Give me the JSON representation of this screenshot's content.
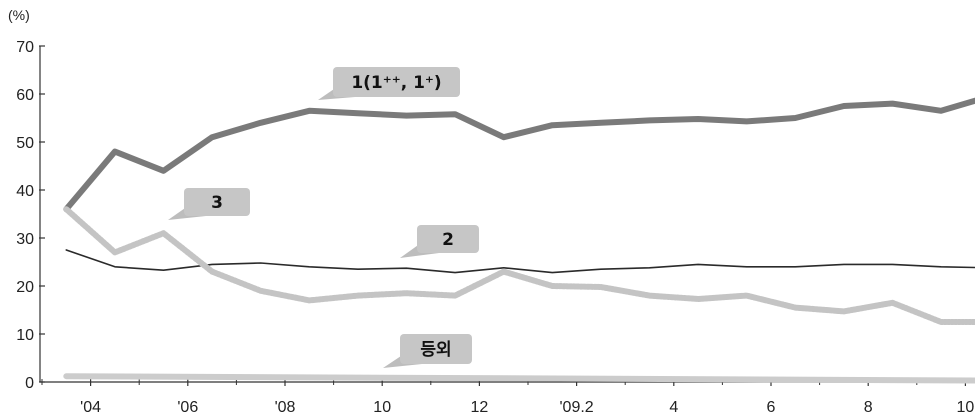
{
  "chart_data": {
    "type": "line",
    "unit_label": "(%)",
    "ylim": [
      0,
      70
    ],
    "yticks": [
      0,
      10,
      20,
      30,
      40,
      50,
      60,
      70
    ],
    "xlim": [
      0,
      26
    ],
    "xticks": [
      {
        "x": 1,
        "label": "'04"
      },
      {
        "x": 3,
        "label": "'06"
      },
      {
        "x": 5,
        "label": "'08"
      },
      {
        "x": 7,
        "label": "10"
      },
      {
        "x": 9,
        "label": "12"
      },
      {
        "x": 11,
        "label": "'09.2"
      },
      {
        "x": 13,
        "label": "4"
      },
      {
        "x": 15,
        "label": "6"
      },
      {
        "x": 17,
        "label": "8"
      },
      {
        "x": 19,
        "label": "10"
      }
    ],
    "grid": false,
    "series": [
      {
        "name": "1(1⁺⁺, 1⁺)",
        "color": "#7a7a7a",
        "style": "thick",
        "x": [
          0.5,
          1.5,
          2.5,
          3.5,
          4.5,
          5.5,
          6.5,
          7.5,
          8.5,
          9.5,
          10.5,
          11.5,
          12.5,
          13.5,
          14.5,
          15.5,
          16.5,
          17.5,
          18.5,
          19.5
        ],
        "values": [
          36,
          48,
          44,
          51,
          54,
          56.5,
          56,
          55.5,
          55.8,
          51,
          53.5,
          54,
          54.5,
          54.8,
          54.3,
          55,
          57.5,
          58,
          56.5,
          59.5
        ]
      },
      {
        "name": "2",
        "color": "#2a2a2a",
        "style": "thin",
        "x": [
          0.5,
          1.5,
          2.5,
          3.5,
          4.5,
          5.5,
          6.5,
          7.5,
          8.5,
          9.5,
          10.5,
          11.5,
          12.5,
          13.5,
          14.5,
          15.5,
          16.5,
          17.5,
          18.5,
          19.5
        ],
        "values": [
          27.5,
          24,
          23.3,
          24.5,
          24.8,
          24,
          23.5,
          23.7,
          22.8,
          23.8,
          22.8,
          23.5,
          23.8,
          24.5,
          24,
          24,
          24.5,
          24.5,
          24,
          23.8
        ]
      },
      {
        "name": "3",
        "color": "#c4c4c4",
        "style": "thick-dotted",
        "x": [
          0.5,
          1.5,
          2.5,
          3.5,
          4.5,
          5.5,
          6.5,
          7.5,
          8.5,
          9.5,
          10.5,
          11.5,
          12.5,
          13.5,
          14.5,
          15.5,
          16.5,
          17.5,
          18.5,
          19.5
        ],
        "values": [
          36,
          27,
          31,
          23,
          19,
          17,
          18,
          18.5,
          18,
          23,
          20,
          19.8,
          18,
          17.3,
          18,
          15.5,
          14.7,
          16.5,
          12.5,
          12.5
        ]
      },
      {
        "name": "등외",
        "color": "#cccccc",
        "style": "thick",
        "x": [
          0.5,
          19.5
        ],
        "values": [
          1.2,
          0.3
        ]
      }
    ],
    "callouts": [
      {
        "text": "1(1⁺⁺, 1⁺)",
        "series": 0
      },
      {
        "text": "3",
        "series": 2
      },
      {
        "text": "2",
        "series": 1
      },
      {
        "text": "등외",
        "series": 3
      }
    ]
  }
}
